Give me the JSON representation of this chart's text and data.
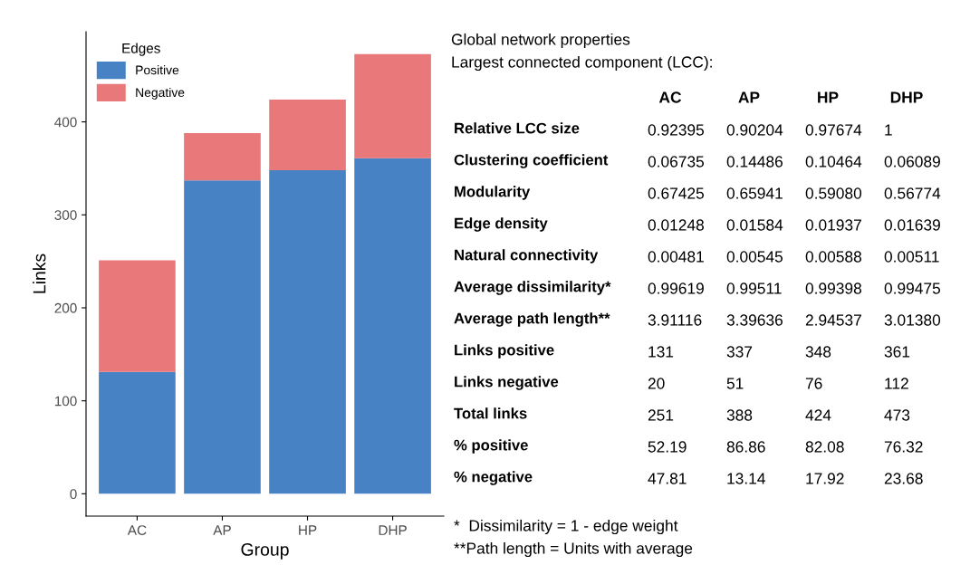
{
  "chart_data": [
    {
      "type": "bar",
      "stacked": true,
      "categories": [
        "AC",
        "AP",
        "HP",
        "DHP"
      ],
      "xlabel": "Group",
      "ylabel": "Links",
      "legend_title": "Edges",
      "legend": "top left",
      "grid": false,
      "ylim": [
        -24,
        497
      ],
      "yticks": [
        0,
        100,
        200,
        300,
        400
      ],
      "series": [
        {
          "name": "Positive",
          "color": "#4682c4",
          "values": [
            131,
            337,
            348,
            361
          ]
        },
        {
          "name": "Negative",
          "color": "#e8787a",
          "values": [
            120,
            51,
            76,
            112
          ]
        }
      ]
    },
    {
      "type": "other",
      "title": "Global network properties",
      "subtitle": "Largest connected component (LCC):",
      "categories": [
        "AC",
        "AP",
        "HP",
        "DHP"
      ],
      "y_categories": [
        "Relative LCC size",
        "Clustering coefficient",
        "Modularity",
        "Edge density",
        "Natural connectivity",
        "Average dissimilarity*",
        "Average path length**",
        "Links positive",
        "Links negative",
        "Total links",
        "% positive",
        "% negative"
      ],
      "cell_labels": [
        [
          "0.92395",
          "0.90204",
          "0.97674",
          "1"
        ],
        [
          "0.06735",
          "0.14486",
          "0.10464",
          "0.06089"
        ],
        [
          "0.67425",
          "0.65941",
          "0.59080",
          "0.56774"
        ],
        [
          "0.01248",
          "0.01584",
          "0.01937",
          "0.01639"
        ],
        [
          "0.00481",
          "0.00545",
          "0.00588",
          "0.00511"
        ],
        [
          "0.99619",
          "0.99511",
          "0.99398",
          "0.99475"
        ],
        [
          "3.91116",
          "3.39636",
          "2.94537",
          "3.01380"
        ],
        [
          "131",
          "337",
          "348",
          "361"
        ],
        [
          "20",
          "51",
          "76",
          "112"
        ],
        [
          "251",
          "388",
          "424",
          "473"
        ],
        [
          "52.19",
          "86.86",
          "82.08",
          "76.32"
        ],
        [
          "47.81",
          "13.14",
          "17.92",
          "23.68"
        ]
      ],
      "annotations": [
        "*  Dissimilarity = 1 - edge weight",
        "**Path length = Units with average"
      ]
    }
  ]
}
